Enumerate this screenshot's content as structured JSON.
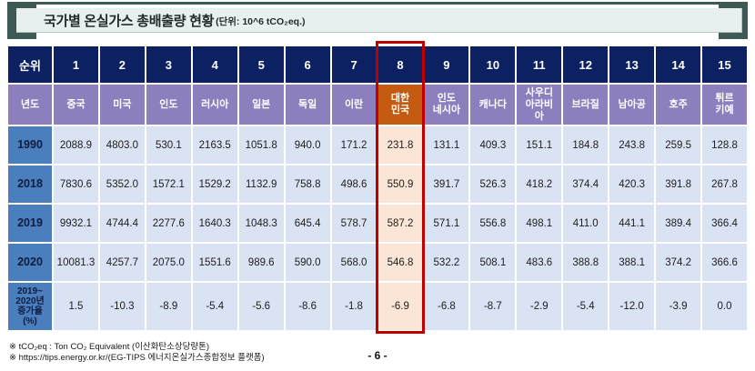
{
  "title": {
    "main": "국가별 온실가스 총배출량 현황",
    "unit": "(단위: 10^6 tCO₂eq.)"
  },
  "table": {
    "rank_header": "순위",
    "year_header": "년도",
    "ranks": [
      "1",
      "2",
      "3",
      "4",
      "5",
      "6",
      "7",
      "8",
      "9",
      "10",
      "11",
      "12",
      "13",
      "14",
      "15"
    ],
    "countries": [
      "중국",
      "미국",
      "인도",
      "러시아",
      "일본",
      "독일",
      "이란",
      "대한\n민국",
      "인도\n네시아",
      "캐나다",
      "사우디\n아라비\n아",
      "브라질",
      "남아공",
      "호주",
      "튀르\n키예"
    ],
    "highlighted_rank": "8",
    "highlighted_country": "대한민국",
    "rows": [
      {
        "label": "1990",
        "values": [
          "2088.9",
          "4803.0",
          "530.1",
          "2163.5",
          "1051.8",
          "940.0",
          "171.2",
          "231.8",
          "131.1",
          "409.3",
          "151.1",
          "184.8",
          "243.8",
          "259.5",
          "128.8"
        ]
      },
      {
        "label": "2018",
        "values": [
          "7830.6",
          "5352.0",
          "1572.1",
          "1529.2",
          "1132.9",
          "758.8",
          "498.6",
          "550.9",
          "391.7",
          "526.3",
          "418.2",
          "374.4",
          "420.3",
          "391.8",
          "267.8"
        ]
      },
      {
        "label": "2019",
        "values": [
          "9932.1",
          "4744.4",
          "2277.6",
          "1640.3",
          "1048.3",
          "645.4",
          "578.7",
          "587.2",
          "571.1",
          "556.8",
          "498.1",
          "411.0",
          "441.1",
          "389.4",
          "366.4"
        ]
      },
      {
        "label": "2020",
        "values": [
          "10081.3",
          "4257.7",
          "2075.0",
          "1551.6",
          "989.6",
          "590.0",
          "568.0",
          "546.8",
          "532.2",
          "508.1",
          "483.6",
          "388.8",
          "388.1",
          "374.2",
          "366.6"
        ]
      },
      {
        "label": "2019~\n2020년\n증가율\n(%)",
        "values": [
          "1.5",
          "-10.3",
          "-8.9",
          "-5.4",
          "-5.6",
          "-8.6",
          "-1.8",
          "-6.9",
          "-6.8",
          "-8.7",
          "-2.9",
          "-5.4",
          "-12.0",
          "-3.9",
          "0.0"
        ]
      }
    ]
  },
  "footnotes": [
    "※ tCO₂eq : Ton CO₂ Equivalent (이산화탄소상당량톤)",
    "※ https://tips.energy.or.kr/(EG-TIPS 에너지온실가스종합정보 플랫폼)"
  ],
  "page_number": "- 6 -",
  "colors": {
    "header_navy": "#0b2161",
    "country_purple": "#8d7fbe",
    "korea_orange": "#c55a11",
    "year_blue": "#4a7ebd",
    "data_light_blue": "#dae3f3",
    "korea_peach": "#fbe5d6",
    "highlight_red": "#c00000",
    "bracket_teal": "#3f5955",
    "title_bg": "#e7f0ee"
  }
}
